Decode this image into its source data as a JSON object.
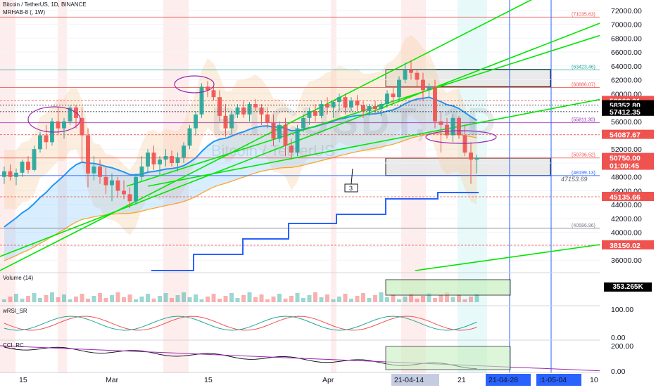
{
  "header": {
    "symbol_line": "Bitcoin / TetherUS, 1D, BINANCE",
    "indicator_line": "MRHAB-8 (, 1W)"
  },
  "watermark": {
    "ticker": "BTCUSDT, 1D",
    "name": "Bitcoin / TetherUS"
  },
  "panes": {
    "volume_label": "Volume (14)",
    "volume_value": "353.265K",
    "wrsi_label": "wRSI_SR",
    "cci_label": "CCI_RC"
  },
  "colors": {
    "bull": "#26a69a",
    "bear": "#ef5350",
    "trendline": "#00e600",
    "step_line": "#2962ff",
    "ema_blue": "#2196f3",
    "ema_orange": "#ff9800",
    "cloud_orange": "#f7c99a",
    "vertical_line": "#2962ff"
  },
  "chart_data": {
    "type": "candlestick",
    "title": "Bitcoin / TetherUS, 1D, BINANCE",
    "y_axis": {
      "ylim": [
        34500,
        73500
      ],
      "ticks": [
        "36000.00",
        "38000.00",
        "40000.00",
        "42000.00",
        "44000.00",
        "46000.00",
        "48000.00",
        "52000.00",
        "56000.00",
        "60000.00",
        "62000.00",
        "64000.00",
        "66000.00",
        "68000.00",
        "70000.00",
        "72000.00"
      ]
    },
    "x_axis": {
      "labels": [
        "15",
        "Mar",
        "15",
        "Apr",
        "21",
        "10"
      ],
      "highlighted_labels": [
        "21-04-14",
        "21-04-28",
        ":1-05-04"
      ]
    },
    "price_tags": [
      {
        "value": "58968.31",
        "color": "#ef5350",
        "text_color": "#ffffff"
      },
      {
        "value": "58352.80",
        "color": "#000000",
        "text_color": "#ffffff"
      },
      {
        "value": "57412.35",
        "color": "#000000",
        "text_color": "#ffffff"
      },
      {
        "value": "54087.67",
        "color": "#ef5350",
        "text_color": "#ffffff"
      },
      {
        "value": "50750.00",
        "color": "#ef5350",
        "text_color": "#ffffff",
        "sub": "01:09:45"
      },
      {
        "value": "45135.66",
        "color": "#ef5350",
        "text_color": "#ffffff"
      },
      {
        "value": "38150.02",
        "color": "#ef5350",
        "text_color": "#ffffff"
      }
    ],
    "level_labels": [
      {
        "text": "(71035.63)",
        "value": 71035.63,
        "color": "#ef5350"
      },
      {
        "text": "(63423.46)",
        "value": 63423.46,
        "color": "#26a69a"
      },
      {
        "text": "(60886.07)",
        "value": 60886.07,
        "color": "#ef5350"
      },
      {
        "text": "(55811.30)",
        "value": 55811.3,
        "color": "#9c27b0"
      },
      {
        "text": "(50736.52)",
        "value": 50736.52,
        "color": "#ef5350"
      },
      {
        "text": "(48199.13)",
        "value": 48199.13,
        "color": "#2962ff"
      },
      {
        "text": "47153.69",
        "value": 47153.69,
        "color": "#5d606b"
      },
      {
        "text": "(40586.96)",
        "value": 40586.96,
        "color": "#787b86"
      }
    ],
    "annotation": {
      "text": "3"
    },
    "candles": [
      {
        "o": 48000,
        "h": 49500,
        "l": 47000,
        "c": 48800
      },
      {
        "o": 48800,
        "h": 49800,
        "l": 47500,
        "c": 48000
      },
      {
        "o": 48000,
        "h": 49200,
        "l": 46800,
        "c": 48600
      },
      {
        "o": 48600,
        "h": 50500,
        "l": 48000,
        "c": 50200
      },
      {
        "o": 50200,
        "h": 51000,
        "l": 48500,
        "c": 49000
      },
      {
        "o": 49000,
        "h": 52500,
        "l": 48800,
        "c": 52000
      },
      {
        "o": 52000,
        "h": 54500,
        "l": 51500,
        "c": 54000
      },
      {
        "o": 54000,
        "h": 55500,
        "l": 52000,
        "c": 53000
      },
      {
        "o": 53000,
        "h": 56500,
        "l": 52500,
        "c": 56000
      },
      {
        "o": 56000,
        "h": 58000,
        "l": 54000,
        "c": 55000
      },
      {
        "o": 55000,
        "h": 56500,
        "l": 53500,
        "c": 56000
      },
      {
        "o": 56000,
        "h": 58300,
        "l": 55500,
        "c": 58000
      },
      {
        "o": 58000,
        "h": 58400,
        "l": 55000,
        "c": 56500
      },
      {
        "o": 56500,
        "h": 58000,
        "l": 50000,
        "c": 54000
      },
      {
        "o": 54000,
        "h": 55000,
        "l": 46500,
        "c": 48500
      },
      {
        "o": 48500,
        "h": 51000,
        "l": 47500,
        "c": 49500
      },
      {
        "o": 49500,
        "h": 50500,
        "l": 47000,
        "c": 48000
      },
      {
        "o": 48000,
        "h": 49500,
        "l": 45500,
        "c": 46800
      },
      {
        "o": 46800,
        "h": 48500,
        "l": 44500,
        "c": 47500
      },
      {
        "o": 47500,
        "h": 48000,
        "l": 45000,
        "c": 46000
      },
      {
        "o": 46000,
        "h": 47500,
        "l": 44800,
        "c": 45500
      },
      {
        "o": 45500,
        "h": 46500,
        "l": 43500,
        "c": 44500
      },
      {
        "o": 44500,
        "h": 48500,
        "l": 44000,
        "c": 48000
      },
      {
        "o": 48000,
        "h": 51000,
        "l": 47500,
        "c": 49500
      },
      {
        "o": 49500,
        "h": 52000,
        "l": 48500,
        "c": 51500
      },
      {
        "o": 51500,
        "h": 52500,
        "l": 49000,
        "c": 49800
      },
      {
        "o": 49800,
        "h": 51000,
        "l": 48200,
        "c": 50500
      },
      {
        "o": 50500,
        "h": 52000,
        "l": 49500,
        "c": 51000
      },
      {
        "o": 51000,
        "h": 51800,
        "l": 49500,
        "c": 50000
      },
      {
        "o": 50000,
        "h": 51500,
        "l": 48800,
        "c": 50800
      },
      {
        "o": 50800,
        "h": 53000,
        "l": 50000,
        "c": 52500
      },
      {
        "o": 52500,
        "h": 55500,
        "l": 52000,
        "c": 55000
      },
      {
        "o": 55000,
        "h": 57500,
        "l": 54000,
        "c": 57000
      },
      {
        "o": 57000,
        "h": 61500,
        "l": 56500,
        "c": 61000
      },
      {
        "o": 61000,
        "h": 61800,
        "l": 59500,
        "c": 60500
      },
      {
        "o": 60500,
        "h": 61200,
        "l": 59000,
        "c": 59500
      },
      {
        "o": 59500,
        "h": 60500,
        "l": 56000,
        "c": 56800
      },
      {
        "o": 56800,
        "h": 58500,
        "l": 53800,
        "c": 55000
      },
      {
        "o": 55000,
        "h": 57500,
        "l": 54000,
        "c": 57000
      },
      {
        "o": 57000,
        "h": 58500,
        "l": 56500,
        "c": 58000
      },
      {
        "o": 58000,
        "h": 59000,
        "l": 56500,
        "c": 57000
      },
      {
        "o": 57000,
        "h": 58800,
        "l": 56000,
        "c": 58500
      },
      {
        "o": 58500,
        "h": 59200,
        "l": 57500,
        "c": 58000
      },
      {
        "o": 58000,
        "h": 58500,
        "l": 55500,
        "c": 57000
      },
      {
        "o": 57000,
        "h": 58000,
        "l": 55000,
        "c": 55800
      },
      {
        "o": 55800,
        "h": 57000,
        "l": 52500,
        "c": 53500
      },
      {
        "o": 53500,
        "h": 56000,
        "l": 53000,
        "c": 55500
      },
      {
        "o": 55500,
        "h": 56500,
        "l": 51000,
        "c": 52500
      },
      {
        "o": 52500,
        "h": 53500,
        "l": 50500,
        "c": 51500
      },
      {
        "o": 51500,
        "h": 55500,
        "l": 51000,
        "c": 55000
      },
      {
        "o": 55000,
        "h": 57000,
        "l": 54500,
        "c": 56500
      },
      {
        "o": 56500,
        "h": 58000,
        "l": 55500,
        "c": 57500
      },
      {
        "o": 57500,
        "h": 58500,
        "l": 56000,
        "c": 56800
      },
      {
        "o": 56800,
        "h": 59000,
        "l": 56500,
        "c": 58500
      },
      {
        "o": 58500,
        "h": 59500,
        "l": 57000,
        "c": 58000
      },
      {
        "o": 58000,
        "h": 59000,
        "l": 56500,
        "c": 58800
      },
      {
        "o": 58800,
        "h": 60000,
        "l": 57500,
        "c": 59500
      },
      {
        "o": 59500,
        "h": 60000,
        "l": 57000,
        "c": 58000
      },
      {
        "o": 58000,
        "h": 59500,
        "l": 57500,
        "c": 59000
      },
      {
        "o": 59000,
        "h": 59800,
        "l": 57500,
        "c": 58300
      },
      {
        "o": 58300,
        "h": 59000,
        "l": 56500,
        "c": 57500
      },
      {
        "o": 57500,
        "h": 58500,
        "l": 56800,
        "c": 58200
      },
      {
        "o": 58200,
        "h": 59000,
        "l": 57000,
        "c": 57800
      },
      {
        "o": 57800,
        "h": 58800,
        "l": 56800,
        "c": 58500
      },
      {
        "o": 58500,
        "h": 60500,
        "l": 58000,
        "c": 60000
      },
      {
        "o": 60000,
        "h": 61000,
        "l": 58500,
        "c": 59500
      },
      {
        "o": 59500,
        "h": 62500,
        "l": 59000,
        "c": 62000
      },
      {
        "o": 62000,
        "h": 64500,
        "l": 61500,
        "c": 63500
      },
      {
        "o": 63500,
        "h": 64800,
        "l": 62000,
        "c": 63000
      },
      {
        "o": 63000,
        "h": 63500,
        "l": 61000,
        "c": 62000
      },
      {
        "o": 62000,
        "h": 63000,
        "l": 59000,
        "c": 60500
      },
      {
        "o": 60500,
        "h": 61500,
        "l": 59500,
        "c": 61000
      },
      {
        "o": 61000,
        "h": 62000,
        "l": 55000,
        "c": 56000
      },
      {
        "o": 56000,
        "h": 57500,
        "l": 51500,
        "c": 55500
      },
      {
        "o": 55500,
        "h": 56500,
        "l": 53500,
        "c": 54000
      },
      {
        "o": 54000,
        "h": 57000,
        "l": 53000,
        "c": 56500
      },
      {
        "o": 56500,
        "h": 56800,
        "l": 53500,
        "c": 54000
      },
      {
        "o": 54000,
        "h": 55500,
        "l": 51000,
        "c": 51500
      },
      {
        "o": 51500,
        "h": 53000,
        "l": 47000,
        "c": 50500
      },
      {
        "o": 50500,
        "h": 51200,
        "l": 48500,
        "c": 50750
      }
    ]
  }
}
